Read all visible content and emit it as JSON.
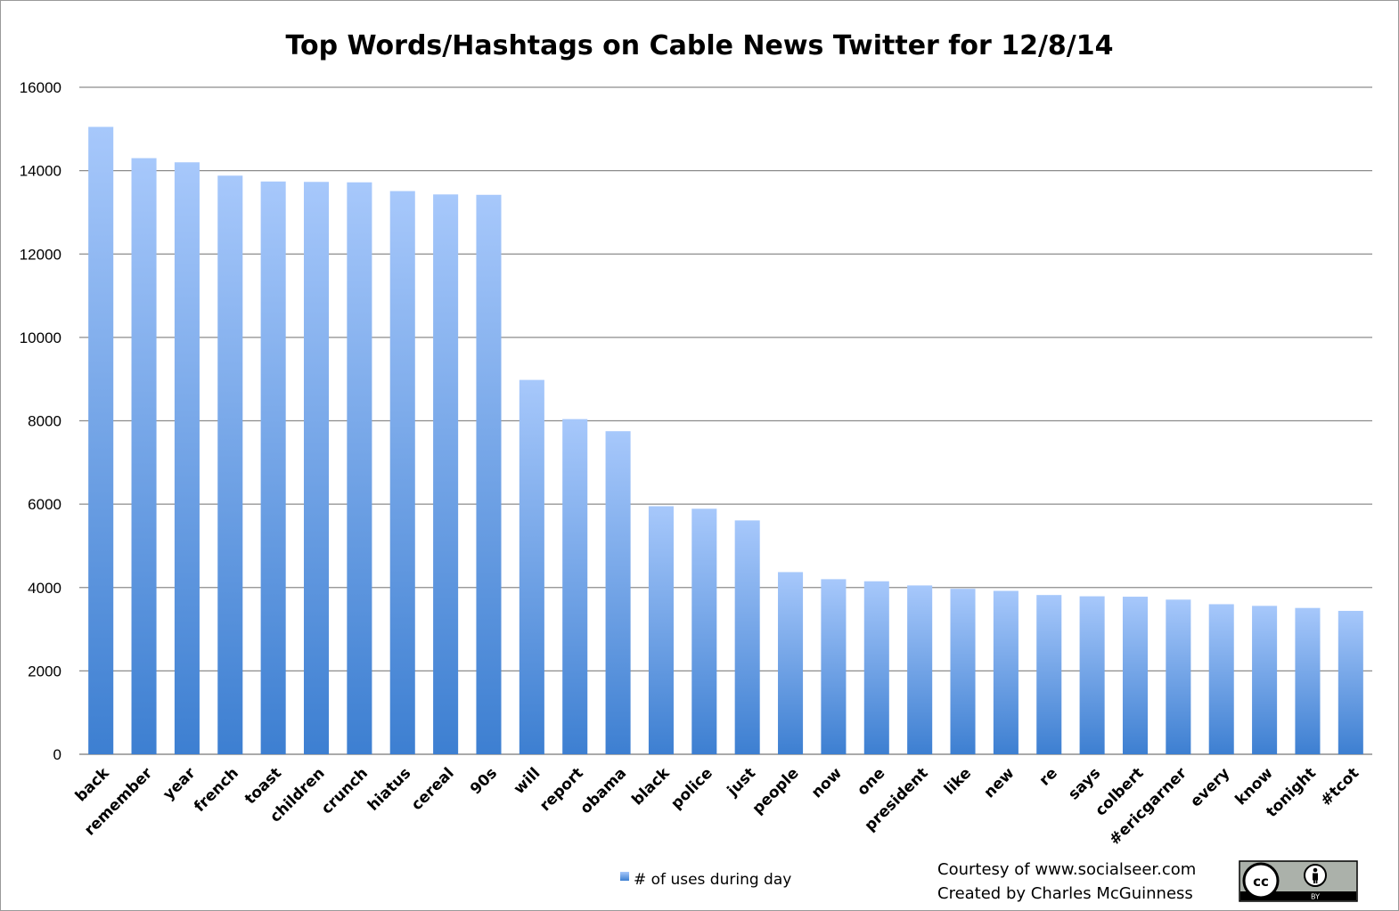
{
  "chart_data": {
    "type": "bar",
    "title": "Top Words/Hashtags on Cable News Twitter for 12/8/14",
    "xlabel": "",
    "ylabel": "",
    "ylim": [
      0,
      16000
    ],
    "yticks": [
      0,
      2000,
      4000,
      6000,
      8000,
      10000,
      12000,
      14000,
      16000
    ],
    "grid": true,
    "legend_position": "bottom",
    "categories": [
      "back",
      "remember",
      "year",
      "french",
      "toast",
      "children",
      "crunch",
      "hiatus",
      "cereal",
      "90s",
      "will",
      "report",
      "obama",
      "black",
      "police",
      "just",
      "people",
      "now",
      "one",
      "president",
      "like",
      "new",
      "re",
      "says",
      "colbert",
      "#ericgarner",
      "every",
      "know",
      "tonight",
      "#tcot"
    ],
    "series": [
      {
        "name": "# of uses during day",
        "color_top": "#a7c8fb",
        "color_bottom": "#3d7fd1",
        "values": [
          15050,
          14300,
          14200,
          13880,
          13740,
          13730,
          13720,
          13510,
          13430,
          13420,
          8980,
          8040,
          7750,
          5950,
          5890,
          5610,
          4370,
          4200,
          4150,
          4050,
          3970,
          3920,
          3820,
          3790,
          3780,
          3710,
          3600,
          3560,
          3510,
          3440
        ]
      }
    ]
  },
  "credits": {
    "line1": "Courtesy of www.socialseer.com",
    "line2": "Created by Charles McGuinness"
  },
  "license_badge": {
    "icon": "cc-by-icon",
    "cc_text": "cc",
    "by_text": "BY"
  }
}
